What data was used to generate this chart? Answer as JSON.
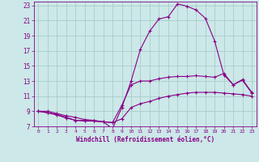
{
  "background_color": "#cce8e8",
  "grid_color": "#aacccc",
  "line_color": "#880088",
  "title": "",
  "xlabel": "Windchill (Refroidissement éolien,°C)",
  "xlim": [
    -0.5,
    23.5
  ],
  "ylim": [
    7,
    23.5
  ],
  "yticks": [
    7,
    9,
    11,
    13,
    15,
    17,
    19,
    21,
    23
  ],
  "xticks": [
    0,
    1,
    2,
    3,
    4,
    5,
    6,
    7,
    8,
    9,
    10,
    11,
    12,
    13,
    14,
    15,
    16,
    17,
    18,
    19,
    20,
    21,
    22,
    23
  ],
  "series": [
    {
      "x": [
        0,
        1,
        2,
        3,
        4,
        5,
        6,
        7,
        8,
        9,
        10,
        11,
        12,
        13,
        14,
        15,
        16,
        17,
        18,
        19,
        20,
        21,
        22,
        23
      ],
      "y": [
        9.0,
        9.0,
        8.7,
        8.4,
        8.2,
        7.9,
        7.8,
        7.6,
        6.7,
        9.5,
        13.0,
        17.2,
        19.6,
        21.2,
        21.5,
        23.2,
        22.9,
        22.4,
        21.3,
        18.3,
        13.8,
        12.5,
        13.1,
        11.4
      ]
    },
    {
      "x": [
        0,
        1,
        2,
        3,
        4,
        5,
        6,
        7,
        8,
        9,
        10,
        11,
        12,
        13,
        14,
        15,
        16,
        17,
        18,
        19,
        20,
        21,
        22,
        23
      ],
      "y": [
        9.0,
        8.8,
        8.6,
        8.2,
        7.8,
        7.8,
        7.7,
        7.6,
        7.5,
        9.8,
        12.5,
        13.0,
        13.0,
        13.3,
        13.5,
        13.6,
        13.6,
        13.7,
        13.6,
        13.5,
        14.0,
        12.5,
        13.2,
        11.5
      ]
    },
    {
      "x": [
        0,
        1,
        2,
        3,
        4,
        5,
        6,
        7,
        8,
        9,
        10,
        11,
        12,
        13,
        14,
        15,
        16,
        17,
        18,
        19,
        20,
        21,
        22,
        23
      ],
      "y": [
        9.0,
        8.8,
        8.5,
        8.1,
        7.8,
        7.7,
        7.7,
        7.6,
        7.5,
        8.0,
        9.5,
        10.0,
        10.3,
        10.7,
        11.0,
        11.2,
        11.4,
        11.5,
        11.5,
        11.5,
        11.4,
        11.3,
        11.2,
        11.0
      ]
    }
  ]
}
